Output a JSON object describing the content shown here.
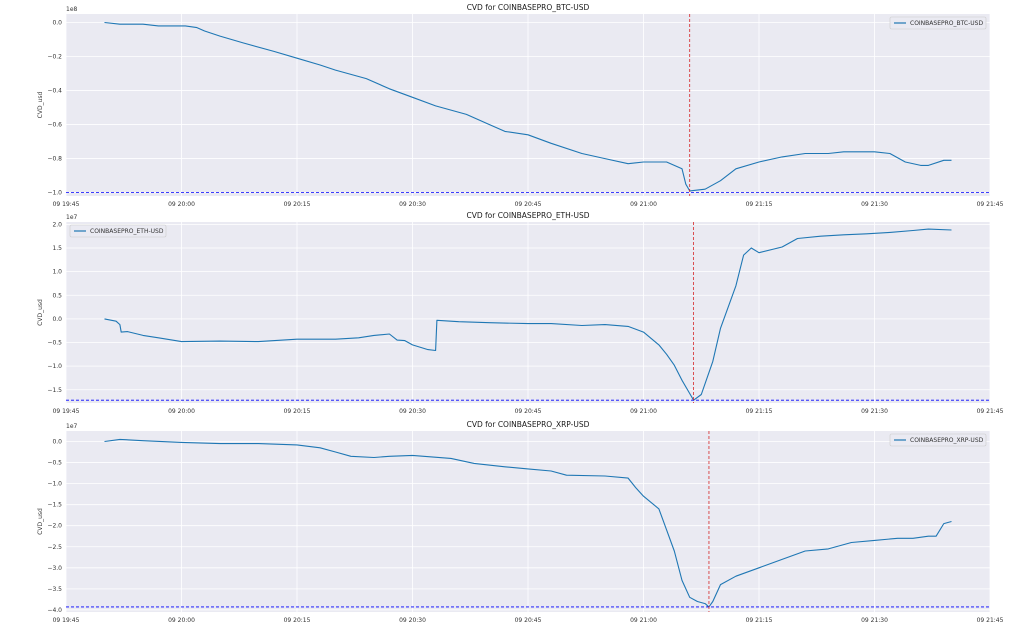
{
  "figure": {
    "background": "#ffffff",
    "plot_background": "#eaeaf2",
    "grid_color": "#ffffff",
    "line_color": "#1f77b4",
    "vline_color": "#d62728",
    "hline_color": "#0000ff",
    "x_tick_labels": [
      "09 19:45",
      "09 20:00",
      "09 20:15",
      "09 20:30",
      "09 20:45",
      "09 21:00",
      "09 21:15",
      "09 21:30",
      "09 21:45"
    ]
  },
  "chart_data": [
    {
      "type": "line",
      "title": "CVD for COINBASEPRO_BTC-USD",
      "xlabel": "",
      "ylabel": "CVD_usd",
      "scale_label": "1e8",
      "legend": "COINBASEPRO_BTC-USD",
      "legend_position": "top-right",
      "grid": true,
      "xlim": [
        "19:45",
        "21:45"
      ],
      "ylim": [
        -1.02,
        0.05
      ],
      "y_ticks": [
        "0.0",
        "−0.2",
        "−0.4",
        "−0.6",
        "−0.8",
        "−1.0"
      ],
      "y_tick_values": [
        0.0,
        -0.2,
        -0.4,
        -0.6,
        -0.8,
        -1.0
      ],
      "vline_x": "21:06:00",
      "hline_y": -1.0,
      "series": [
        {
          "name": "COINBASEPRO_BTC-USD",
          "x": [
            "19:50:00",
            "19:52:00",
            "19:55:00",
            "19:57:00",
            "19:59:00",
            "20:00:30",
            "20:02:00",
            "20:03:00",
            "20:05:00",
            "20:08:00",
            "20:12:00",
            "20:15:00",
            "20:18:00",
            "20:20:00",
            "20:24:00",
            "20:27:00",
            "20:30:00",
            "20:33:00",
            "20:37:00",
            "20:40:00",
            "20:42:00",
            "20:45:00",
            "20:48:00",
            "20:52:00",
            "20:55:00",
            "20:58:00",
            "21:00:00",
            "21:03:00",
            "21:05:00",
            "21:05:30",
            "21:06:00",
            "21:08:00",
            "21:10:00",
            "21:12:00",
            "21:15:00",
            "21:18:00",
            "21:21:00",
            "21:24:00",
            "21:26:00",
            "21:28:00",
            "21:30:00",
            "21:32:00",
            "21:34:00",
            "21:36:00",
            "21:37:00",
            "21:39:00",
            "21:40:00"
          ],
          "values": [
            0.0,
            -0.01,
            -0.01,
            -0.02,
            -0.02,
            -0.02,
            -0.03,
            -0.05,
            -0.08,
            -0.12,
            -0.17,
            -0.21,
            -0.25,
            -0.28,
            -0.33,
            -0.39,
            -0.44,
            -0.49,
            -0.54,
            -0.6,
            -0.64,
            -0.66,
            -0.71,
            -0.77,
            -0.8,
            -0.83,
            -0.82,
            -0.82,
            -0.86,
            -0.95,
            -0.99,
            -0.98,
            -0.93,
            -0.86,
            -0.82,
            -0.79,
            -0.77,
            -0.77,
            -0.76,
            -0.76,
            -0.76,
            -0.77,
            -0.82,
            -0.84,
            -0.84,
            -0.81,
            -0.81
          ]
        }
      ]
    },
    {
      "type": "line",
      "title": "CVD for COINBASEPRO_ETH-USD",
      "xlabel": "",
      "ylabel": "CVD_usd",
      "scale_label": "1e7",
      "legend": "COINBASEPRO_ETH-USD",
      "legend_position": "top-left",
      "grid": true,
      "xlim": [
        "19:45",
        "21:45"
      ],
      "ylim": [
        -1.78,
        2.05
      ],
      "y_ticks": [
        "2.0",
        "1.5",
        "1.0",
        "0.5",
        "0.0",
        "−0.5",
        "−1.0",
        "−1.5"
      ],
      "y_tick_values": [
        2.0,
        1.5,
        1.0,
        0.5,
        0.0,
        -0.5,
        -1.0,
        -1.5
      ],
      "vline_x": "21:06:30",
      "hline_y": -1.72,
      "series": [
        {
          "name": "COINBASEPRO_ETH-USD",
          "x": [
            "19:50:00",
            "19:51:30",
            "19:52:00",
            "19:52:10",
            "19:53:00",
            "19:55:00",
            "19:57:00",
            "20:00:00",
            "20:05:00",
            "20:10:00",
            "20:15:00",
            "20:20:00",
            "20:23:00",
            "20:25:00",
            "20:27:00",
            "20:28:00",
            "20:29:00",
            "20:30:00",
            "20:32:00",
            "20:33:00",
            "20:33:10",
            "20:36:00",
            "20:40:00",
            "20:45:00",
            "20:48:00",
            "20:52:00",
            "20:55:00",
            "20:58:00",
            "21:00:00",
            "21:02:00",
            "21:03:00",
            "21:04:00",
            "21:05:00",
            "21:06:00",
            "21:06:30",
            "21:07:30",
            "21:09:00",
            "21:10:00",
            "21:12:00",
            "21:13:00",
            "21:14:00",
            "21:15:00",
            "21:18:00",
            "21:20:00",
            "21:23:00",
            "21:26:00",
            "21:29:00",
            "21:32:00",
            "21:35:00",
            "21:37:00",
            "21:40:00"
          ],
          "values": [
            0.0,
            -0.05,
            -0.12,
            -0.28,
            -0.27,
            -0.35,
            -0.4,
            -0.48,
            -0.47,
            -0.48,
            -0.43,
            -0.43,
            -0.4,
            -0.35,
            -0.32,
            -0.45,
            -0.46,
            -0.55,
            -0.65,
            -0.67,
            -0.03,
            -0.06,
            -0.08,
            -0.1,
            -0.1,
            -0.14,
            -0.12,
            -0.16,
            -0.28,
            -0.55,
            -0.75,
            -0.98,
            -1.3,
            -1.58,
            -1.72,
            -1.6,
            -0.9,
            -0.2,
            0.7,
            1.35,
            1.5,
            1.4,
            1.52,
            1.7,
            1.75,
            1.78,
            1.8,
            1.83,
            1.87,
            1.9,
            1.88
          ]
        }
      ]
    },
    {
      "type": "line",
      "title": "CVD for COINBASEPRO_XRP-USD",
      "xlabel": "",
      "ylabel": "CVD_usd",
      "scale_label": "1e7",
      "legend": "COINBASEPRO_XRP-USD",
      "legend_position": "top-right",
      "grid": true,
      "xlim": [
        "19:45",
        "21:45"
      ],
      "ylim": [
        -4.05,
        0.25
      ],
      "y_ticks": [
        "0.0",
        "−0.5",
        "−1.0",
        "−1.5",
        "−2.0",
        "−2.5",
        "−3.0",
        "−3.5",
        "−4.0"
      ],
      "y_tick_values": [
        0.0,
        -0.5,
        -1.0,
        -1.5,
        -2.0,
        -2.5,
        -3.0,
        -3.5,
        -4.0
      ],
      "vline_x": "21:08:30",
      "hline_y": -3.93,
      "series": [
        {
          "name": "COINBASEPRO_XRP-USD",
          "x": [
            "19:50:00",
            "19:52:00",
            "19:55:00",
            "20:00:00",
            "20:05:00",
            "20:10:00",
            "20:15:00",
            "20:18:00",
            "20:20:00",
            "20:22:00",
            "20:25:00",
            "20:27:00",
            "20:30:00",
            "20:35:00",
            "20:38:00",
            "20:42:00",
            "20:45:00",
            "20:48:00",
            "20:50:00",
            "20:55:00",
            "20:58:00",
            "20:59:00",
            "21:00:00",
            "21:02:00",
            "21:03:00",
            "21:04:00",
            "21:05:00",
            "21:06:00",
            "21:07:00",
            "21:08:00",
            "21:08:30",
            "21:09:00",
            "21:10:00",
            "21:12:00",
            "21:15:00",
            "21:18:00",
            "21:21:00",
            "21:24:00",
            "21:27:00",
            "21:30:00",
            "21:33:00",
            "21:35:00",
            "21:37:00",
            "21:38:00",
            "21:39:00",
            "21:40:00"
          ],
          "values": [
            0.0,
            0.05,
            0.02,
            -0.02,
            -0.05,
            -0.05,
            -0.08,
            -0.15,
            -0.25,
            -0.35,
            -0.38,
            -0.35,
            -0.33,
            -0.4,
            -0.52,
            -0.6,
            -0.65,
            -0.7,
            -0.8,
            -0.82,
            -0.87,
            -1.1,
            -1.3,
            -1.6,
            -2.1,
            -2.6,
            -3.3,
            -3.7,
            -3.8,
            -3.85,
            -3.93,
            -3.8,
            -3.4,
            -3.2,
            -3.0,
            -2.8,
            -2.6,
            -2.55,
            -2.4,
            -2.35,
            -2.3,
            -2.3,
            -2.25,
            -2.25,
            -1.95,
            -1.9
          ]
        }
      ]
    }
  ]
}
